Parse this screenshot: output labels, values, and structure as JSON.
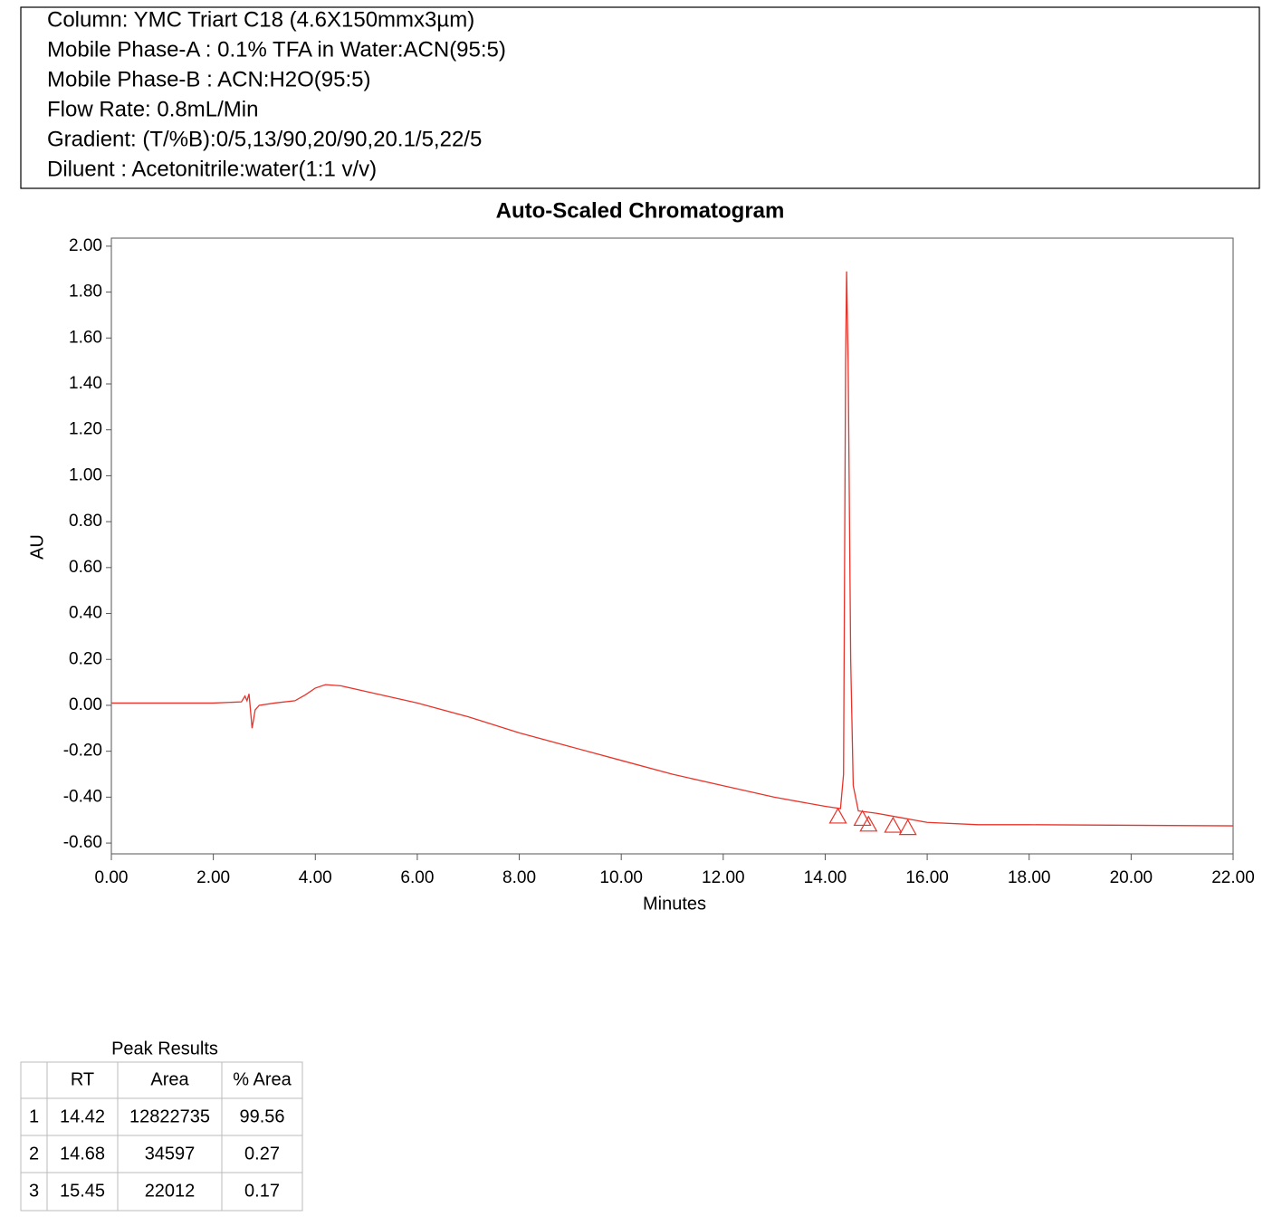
{
  "header": {
    "lines": [
      "Column: YMC Triart C18 (4.6X150mmx3µm)",
      "Mobile Phase-A : 0.1% TFA in Water:ACN(95:5)",
      "Mobile Phase-B : ACN:H2O(95:5)",
      "Flow Rate: 0.8mL/Min",
      "Gradient: (T/%B):0/5,13/90,20/90,20.1/5,22/5",
      "Diluent : Acetonitrile:water(1:1 v/v)"
    ]
  },
  "chart_data": {
    "type": "line",
    "title": "Auto-Scaled Chromatogram",
    "x_label": "Minutes",
    "y_label": "AU",
    "color": "#e8332a",
    "x": [
      0,
      1,
      2,
      2.55,
      2.62,
      2.66,
      2.7,
      2.76,
      2.82,
      2.9,
      3.2,
      3.6,
      3.8,
      4.0,
      4.2,
      4.5,
      5.0,
      6.0,
      7.0,
      8.0,
      9.0,
      10.0,
      11.0,
      12.0,
      13.0,
      14.0,
      14.3,
      14.36,
      14.4,
      14.42,
      14.45,
      14.5,
      14.55,
      14.65,
      15.0,
      15.5,
      16.0,
      17.0,
      18.0,
      22.0
    ],
    "values": [
      0.01,
      0.01,
      0.01,
      0.015,
      0.04,
      0.02,
      0.05,
      -0.1,
      -0.02,
      0.0,
      0.01,
      0.02,
      0.045,
      0.075,
      0.09,
      0.085,
      0.06,
      0.01,
      -0.05,
      -0.12,
      -0.18,
      -0.24,
      -0.3,
      -0.35,
      -0.4,
      -0.44,
      -0.45,
      -0.3,
      1.5,
      1.89,
      1.5,
      0.2,
      -0.35,
      -0.46,
      -0.47,
      -0.49,
      -0.51,
      -0.52,
      -0.52,
      -0.525
    ],
    "markers": {
      "x": [
        14.25,
        14.73,
        14.85,
        15.33,
        15.62
      ],
      "values": [
        -0.485,
        -0.495,
        -0.52,
        -0.525,
        -0.535
      ]
    },
    "xlim": [
      0,
      22
    ],
    "ylim": [
      -0.647,
      2.035
    ],
    "xticks": [
      {
        "value": 0,
        "label": "0.00"
      },
      {
        "value": 2,
        "label": "2.00"
      },
      {
        "value": 4,
        "label": "4.00"
      },
      {
        "value": 6,
        "label": "6.00"
      },
      {
        "value": 8,
        "label": "8.00"
      },
      {
        "value": 10,
        "label": "10.00"
      },
      {
        "value": 12,
        "label": "12.00"
      },
      {
        "value": 14,
        "label": "14.00"
      },
      {
        "value": 16,
        "label": "16.00"
      },
      {
        "value": 18,
        "label": "18.00"
      },
      {
        "value": 20,
        "label": "20.00"
      },
      {
        "value": 22,
        "label": "22.00"
      }
    ],
    "yticks": [
      {
        "value": -0.6,
        "label": "-0.60"
      },
      {
        "value": -0.4,
        "label": "-0.40"
      },
      {
        "value": -0.2,
        "label": "-0.20"
      },
      {
        "value": 0,
        "label": "0.00"
      },
      {
        "value": 0.2,
        "label": "0.20"
      },
      {
        "value": 0.4,
        "label": "0.40"
      },
      {
        "value": 0.6,
        "label": "0.60"
      },
      {
        "value": 0.8,
        "label": "0.80"
      },
      {
        "value": 1,
        "label": "1.00"
      },
      {
        "value": 1.2,
        "label": "1.20"
      },
      {
        "value": 1.4,
        "label": "1.40"
      },
      {
        "value": 1.6,
        "label": "1.60"
      },
      {
        "value": 1.8,
        "label": "1.80"
      },
      {
        "value": 2,
        "label": "2.00"
      }
    ],
    "grid": false
  },
  "table": {
    "title": "Peak Results",
    "headers": [
      "RT",
      "Area",
      "% Area"
    ],
    "rows": [
      [
        1,
        14.42,
        12822735,
        99.56
      ],
      [
        2,
        14.68,
        34597,
        0.27
      ],
      [
        3,
        15.45,
        22012,
        0.17
      ]
    ]
  }
}
